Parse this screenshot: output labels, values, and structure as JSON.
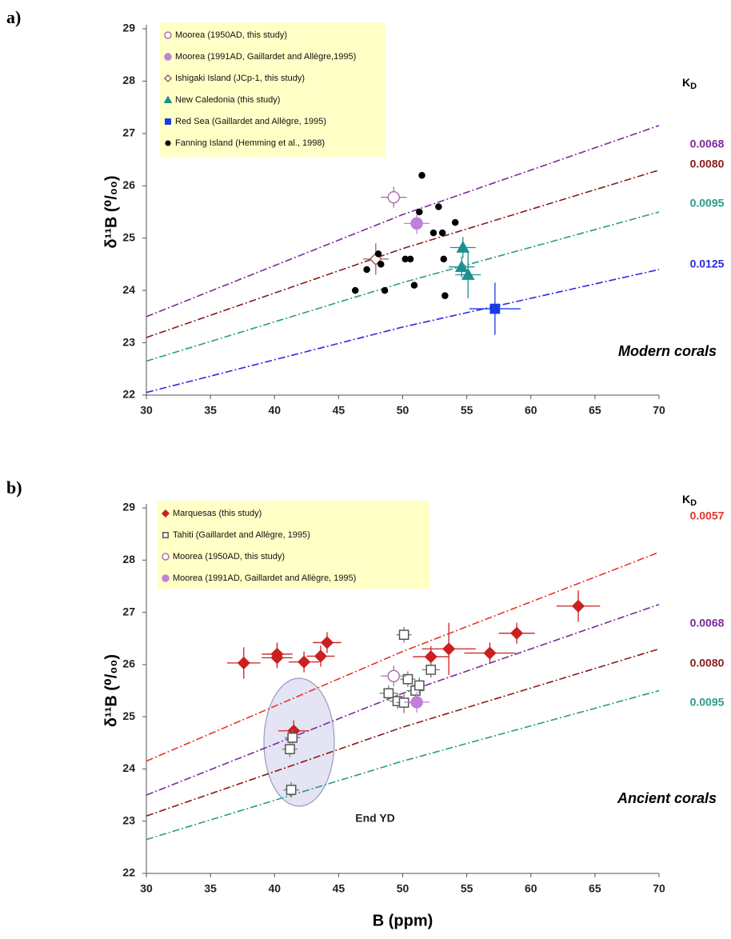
{
  "chart_data": [
    {
      "type": "scatter",
      "panel_label": "a)",
      "ylabel": "δ¹¹B (⁰/₀₀)",
      "annotation": "Modern corals",
      "kd_header": {
        "text": "K",
        "subscript": "D"
      },
      "xlim": [
        30,
        70
      ],
      "ylim": [
        22,
        29
      ],
      "xticks": [
        30,
        35,
        40,
        45,
        50,
        55,
        60,
        65,
        70
      ],
      "yticks": [
        22,
        23,
        24,
        25,
        26,
        27,
        28,
        29
      ],
      "kd_lines": [
        {
          "name": "0.0068",
          "color": "#7b2a9b",
          "x": [
            30,
            50,
            70
          ],
          "y": [
            23.5,
            25.45,
            27.15
          ]
        },
        {
          "name": "0.0080",
          "color": "#8b1a1a",
          "x": [
            30,
            50,
            70
          ],
          "y": [
            23.1,
            24.8,
            26.3
          ]
        },
        {
          "name": "0.0095",
          "color": "#2a9a8a",
          "x": [
            30,
            50,
            70
          ],
          "y": [
            22.65,
            24.15,
            25.5
          ]
        },
        {
          "name": "0.0125",
          "color": "#2a2ae0",
          "x": [
            30,
            50,
            70
          ],
          "y": [
            22.05,
            23.3,
            24.4
          ]
        }
      ],
      "series": [
        {
          "name": "Moorea (1950AD, this study)",
          "marker": "circle",
          "filled": false,
          "color": "#b06fb0",
          "x": [
            49.3
          ],
          "y": [
            25.78
          ],
          "xerr": [
            1.0
          ],
          "yerr": [
            0.2
          ]
        },
        {
          "name": "Moorea (1991AD, Gaillardet and Allègre,1995)",
          "marker": "circle",
          "filled": true,
          "color": "#c080d8",
          "x": [
            51.1
          ],
          "y": [
            25.28
          ],
          "xerr": [
            1.0
          ],
          "yerr": [
            0.2
          ]
        },
        {
          "name": "Ishigaki Island (JCp-1, this study)",
          "marker": "diamond",
          "filled": false,
          "color": "#a0605a",
          "x": [
            47.9
          ],
          "y": [
            24.6
          ],
          "xerr": [
            1.0
          ],
          "yerr": [
            0.3
          ]
        },
        {
          "name": "New Caledonia (this study)",
          "marker": "triangle",
          "filled": true,
          "color": "#1f8f8f",
          "x": [
            54.7,
            54.6,
            55.1
          ],
          "y": [
            24.82,
            24.45,
            24.3
          ],
          "xerr": [
            1.0,
            1.0,
            1.0
          ],
          "yerr": [
            0.2,
            0.2,
            0.45
          ]
        },
        {
          "name": "Red Sea (Gaillardet and Allègre, 1995)",
          "marker": "square",
          "filled": true,
          "color": "#1a3ae8",
          "x": [
            57.2
          ],
          "y": [
            23.65
          ],
          "xerr": [
            2.0
          ],
          "yerr": [
            0.5
          ]
        },
        {
          "name": "Fanning Island (Hemming et al., 1998)",
          "marker": "dot",
          "filled": true,
          "color": "#000000",
          "x": [
            46.3,
            47.2,
            48.1,
            48.3,
            48.6,
            50.2,
            50.6,
            50.9,
            51.5,
            51.3,
            52.4,
            52.8,
            53.1,
            53.2,
            53.3,
            54.1
          ],
          "y": [
            24.0,
            24.4,
            24.7,
            24.5,
            24.0,
            24.6,
            24.6,
            24.1,
            26.2,
            25.5,
            25.1,
            25.6,
            25.1,
            24.6,
            23.9,
            25.3
          ]
        }
      ]
    },
    {
      "type": "scatter",
      "panel_label": "b)",
      "ylabel": "δ¹¹B (⁰/₀₀)",
      "xlabel": "B (ppm)",
      "annotation": "Ancient corals",
      "highlight": {
        "label": "End YD"
      },
      "kd_header": {
        "text": "K",
        "subscript": "D"
      },
      "xlim": [
        30,
        70
      ],
      "ylim": [
        22,
        29
      ],
      "xticks": [
        30,
        35,
        40,
        45,
        50,
        55,
        60,
        65,
        70
      ],
      "yticks": [
        22,
        23,
        24,
        25,
        26,
        27,
        28,
        29
      ],
      "kd_lines": [
        {
          "name": "0.0057",
          "color": "#e8352a",
          "x": [
            30,
            50,
            70
          ],
          "y": [
            24.15,
            26.25,
            28.15
          ]
        },
        {
          "name": "0.0068",
          "color": "#7b2a9b",
          "x": [
            30,
            50,
            70
          ],
          "y": [
            23.5,
            25.45,
            27.15
          ]
        },
        {
          "name": "0.0080",
          "color": "#8b1a1a",
          "x": [
            30,
            50,
            70
          ],
          "y": [
            23.1,
            24.8,
            26.3
          ]
        },
        {
          "name": "0.0095",
          "color": "#2a9a8a",
          "x": [
            30,
            50,
            70
          ],
          "y": [
            22.65,
            24.15,
            25.5
          ]
        }
      ],
      "series": [
        {
          "name": "Marquesas (this study)",
          "marker": "diamond",
          "filled": true,
          "color": "#cc1f1f",
          "x": [
            37.6,
            40.2,
            40.2,
            42.3,
            43.6,
            44.1,
            41.5,
            52.2,
            53.6,
            56.8,
            58.9,
            63.7
          ],
          "y": [
            26.03,
            26.2,
            26.13,
            26.05,
            26.16,
            26.42,
            24.73,
            26.15,
            26.3,
            26.22,
            26.6,
            27.12
          ],
          "xerr": [
            1.3,
            1.2,
            1.2,
            1.2,
            1.1,
            1.1,
            1.2,
            1.4,
            2.1,
            2.0,
            1.4,
            1.7
          ],
          "yerr": [
            0.3,
            0.22,
            0.2,
            0.2,
            0.2,
            0.2,
            0.2,
            0.2,
            0.5,
            0.2,
            0.2,
            0.3
          ]
        },
        {
          "name": "Tahiti (Gaillardet and Allègre, 1995)",
          "marker": "square",
          "filled": false,
          "color": "#555555",
          "x": [
            41.3,
            41.2,
            41.4,
            50.1,
            48.9,
            49.6,
            50.1,
            50.4,
            51.0,
            51.3,
            52.2
          ],
          "y": [
            23.6,
            24.38,
            24.6,
            26.57,
            25.45,
            25.3,
            25.27,
            25.72,
            25.5,
            25.6,
            25.9
          ],
          "xerr": [
            0.6,
            0.6,
            0.6,
            0.6,
            0.7,
            0.6,
            0.6,
            0.6,
            0.7,
            0.6,
            0.7
          ],
          "yerr": [
            0.15,
            0.15,
            0.15,
            0.15,
            0.15,
            0.15,
            0.2,
            0.15,
            0.15,
            0.15,
            0.15
          ]
        },
        {
          "name": "Moorea (1950AD, this study)",
          "marker": "circle",
          "filled": false,
          "color": "#b06fb0",
          "x": [
            49.3
          ],
          "y": [
            25.78
          ],
          "xerr": [
            1.0
          ],
          "yerr": [
            0.2
          ]
        },
        {
          "name": "Moorea (1991AD, Gaillardet and Allègre, 1995)",
          "marker": "circle",
          "filled": true,
          "color": "#c080d8",
          "x": [
            51.1
          ],
          "y": [
            25.28
          ],
          "xerr": [
            1.0
          ],
          "yerr": [
            0.2
          ]
        }
      ]
    }
  ]
}
